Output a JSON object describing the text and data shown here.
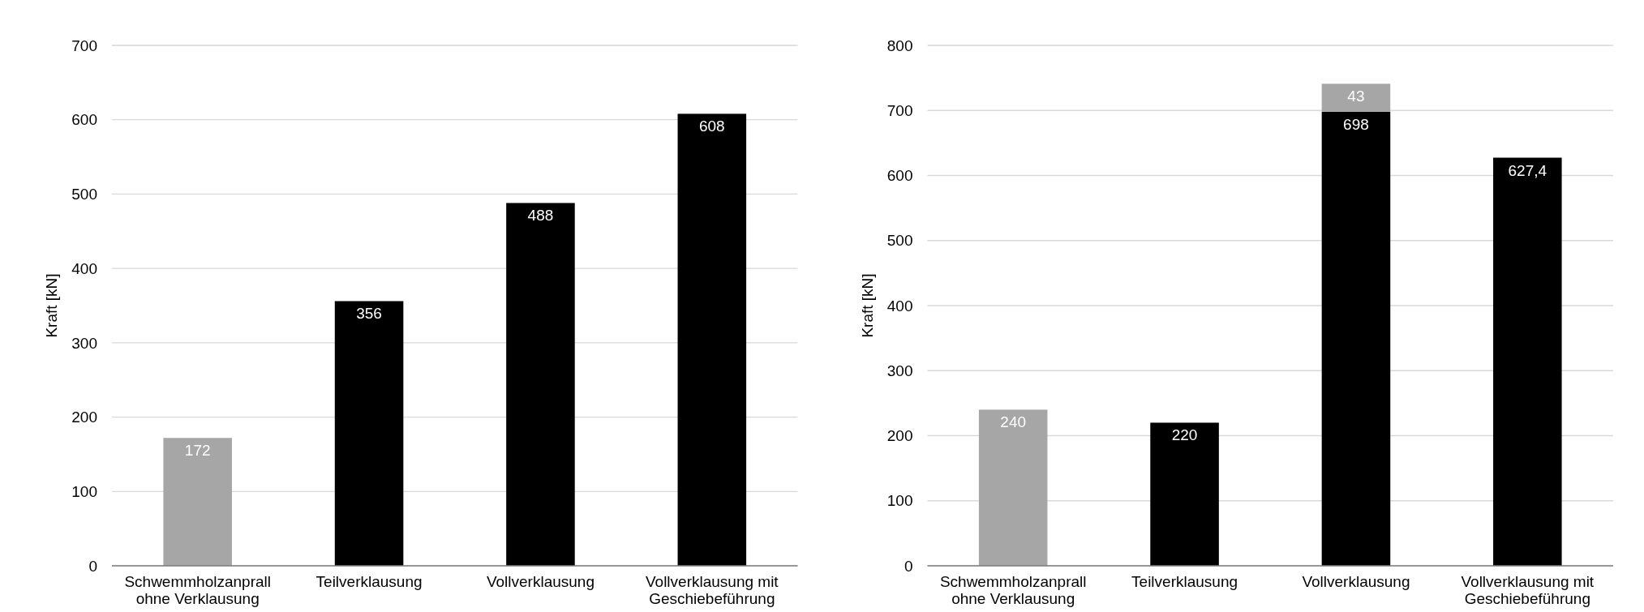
{
  "chart_data": [
    {
      "type": "bar",
      "ylabel": "Kraft [kN]",
      "categories": [
        "Schwemmholzanprall ohne Verklausung",
        "Teilverklausung",
        "Vollverklausung",
        "Vollverklausung mit Geschiebeführung"
      ],
      "series": [
        {
          "values": [
            172,
            356,
            488,
            608
          ],
          "colors": [
            "#a6a6a6",
            "#000000",
            "#000000",
            "#000000"
          ],
          "value_labels": [
            "172",
            "356",
            "488",
            "608"
          ]
        }
      ],
      "ylim": [
        0,
        700
      ],
      "yticks": [
        0,
        100,
        200,
        300,
        400,
        500,
        600,
        700
      ],
      "grid": "y"
    },
    {
      "type": "bar",
      "stacked": true,
      "ylabel": "Kraft [kN]",
      "categories": [
        "Schwemmholzanprall ohne Verklausung",
        "Teilverklausung",
        "Vollverklausung",
        "Vollverklausung mit Geschiebeführung"
      ],
      "series": [
        {
          "values": [
            240,
            220,
            698,
            627.4
          ],
          "colors": [
            "#a6a6a6",
            "#000000",
            "#000000",
            "#000000"
          ],
          "value_labels": [
            "240",
            "220",
            "698",
            "627,4"
          ]
        },
        {
          "values": [
            null,
            null,
            43,
            null
          ],
          "color": "#a6a6a6",
          "value_labels": [
            null,
            null,
            "43",
            null
          ]
        }
      ],
      "ylim": [
        0,
        800
      ],
      "yticks": [
        0,
        100,
        200,
        300,
        400,
        500,
        600,
        700,
        800
      ],
      "grid": "y"
    }
  ]
}
